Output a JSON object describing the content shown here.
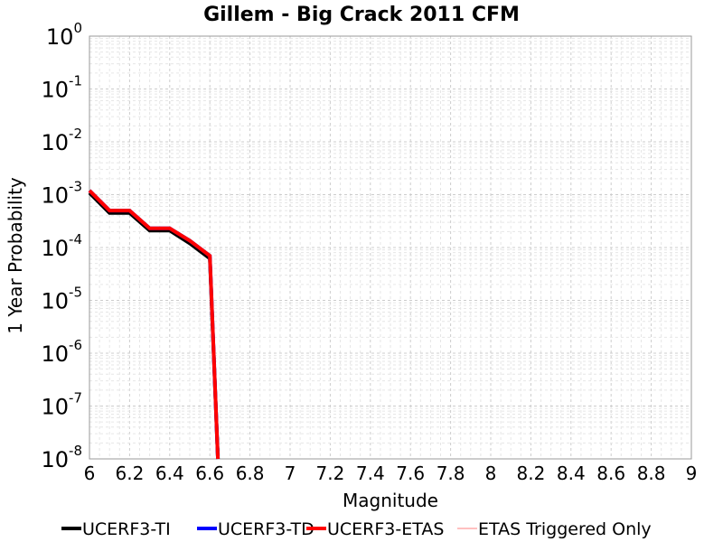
{
  "chart_data": {
    "type": "line",
    "title": "Gillem - Big Crack 2011 CFM",
    "xlabel": "Magnitude",
    "ylabel": "1 Year Probability",
    "xlim": [
      6,
      9
    ],
    "ylim": [
      1e-08,
      1
    ],
    "yscale": "log",
    "grid": true,
    "legend_position": "bottom",
    "x_ticks": [
      "6",
      "6.2",
      "6.4",
      "6.6",
      "6.8",
      "7",
      "7.2",
      "7.4",
      "7.6",
      "7.8",
      "8",
      "8.2",
      "8.4",
      "8.6",
      "8.8",
      "9"
    ],
    "y_ticks": [
      {
        "base": "10",
        "exp": "0"
      },
      {
        "base": "10",
        "exp": "-1"
      },
      {
        "base": "10",
        "exp": "-2"
      },
      {
        "base": "10",
        "exp": "-3"
      },
      {
        "base": "10",
        "exp": "-4"
      },
      {
        "base": "10",
        "exp": "-5"
      },
      {
        "base": "10",
        "exp": "-6"
      },
      {
        "base": "10",
        "exp": "-7"
      },
      {
        "base": "10",
        "exp": "-8"
      }
    ],
    "series": [
      {
        "name": "UCERF3-TI",
        "color": "#000000",
        "width": 4,
        "x": [
          6.0,
          6.1,
          6.2,
          6.3,
          6.4,
          6.5,
          6.6,
          6.64
        ],
        "y": [
          0.00108,
          0.00045,
          0.00045,
          0.00021,
          0.00021,
          0.00012,
          6.2e-05,
          1e-08
        ]
      },
      {
        "name": "UCERF3-TD",
        "color": "#0000ff",
        "width": 4,
        "x": [
          6.0,
          6.1,
          6.2,
          6.3,
          6.4,
          6.5,
          6.6,
          6.64
        ],
        "y": [
          0.0012,
          0.0005,
          0.0005,
          0.00023,
          0.00023,
          0.000135,
          7e-05,
          1e-08
        ]
      },
      {
        "name": "UCERF3-ETAS",
        "color": "#ff0000",
        "width": 4,
        "x": [
          6.0,
          6.1,
          6.2,
          6.3,
          6.4,
          6.5,
          6.6,
          6.64
        ],
        "y": [
          0.0012,
          0.0005,
          0.0005,
          0.00023,
          0.00023,
          0.000135,
          7e-05,
          1e-08
        ]
      },
      {
        "name": "ETAS Triggered Only",
        "color": "#ff8080",
        "width": 1,
        "x": [],
        "y": []
      }
    ]
  }
}
